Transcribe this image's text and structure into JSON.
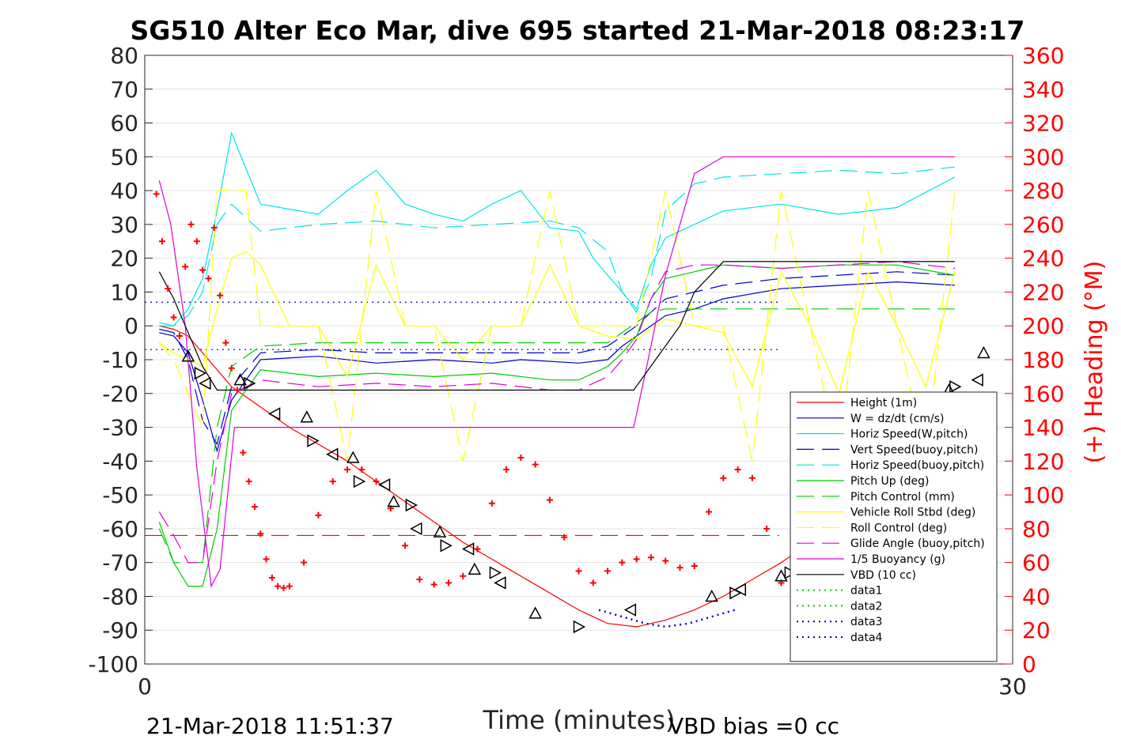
{
  "chart_data": {
    "type": "line",
    "title": "SG510 Alter Eco Mar, dive 695 started 21-Mar-2018 08:23:17",
    "xlabel": "Time (minutes)",
    "ylabel_right": "(+) Heading (°M)",
    "xlim": [
      0,
      30
    ],
    "ylim_left": [
      -100,
      80
    ],
    "ylim_right": [
      0,
      360
    ],
    "x_ticks": [
      "0",
      "30"
    ],
    "y_left_ticks": [
      "80",
      "70",
      "60",
      "50",
      "40",
      "30",
      "20",
      "10",
      "0",
      "-10",
      "-20",
      "-30",
      "-40",
      "-50",
      "-60",
      "-70",
      "-80",
      "-90",
      "-100"
    ],
    "y_right_ticks": [
      "360",
      "340",
      "320",
      "300",
      "280",
      "260",
      "240",
      "220",
      "200",
      "180",
      "160",
      "140",
      "120",
      "100",
      "80",
      "60",
      "40",
      "20",
      "0"
    ],
    "grid": true,
    "legend_position": "bottom-right",
    "footer_left": "21-Mar-2018 11:51:37",
    "footer_right": "VBD bias =0 cc",
    "reference_lines": [
      {
        "y": 7,
        "color": "#0000aa",
        "dash": "dotted"
      },
      {
        "y": -7,
        "color": "#0000aa",
        "dash": "dotted"
      },
      {
        "y": -62,
        "color": "#ff0000",
        "dash": "dashed"
      }
    ],
    "series": [
      {
        "name": "Height (1m)",
        "color": "#ff0000",
        "dash": "solid",
        "x": [
          0.5,
          1.0,
          1.5,
          2.0,
          3,
          4,
          5,
          6,
          7,
          8,
          9,
          10,
          11,
          12,
          13,
          14,
          15,
          16,
          17,
          18,
          19,
          20,
          21,
          22,
          23,
          24,
          25,
          26,
          27,
          28
        ],
        "y": [
          0,
          -1,
          -3,
          -8,
          -18,
          -24,
          -30,
          -35,
          -40,
          -46,
          -52,
          -58,
          -64,
          -69,
          -74,
          -79,
          -84,
          -88,
          -89,
          -87,
          -84,
          -80,
          -75,
          -70,
          -64,
          -57,
          -49,
          -41,
          -33,
          -25
        ]
      },
      {
        "name": "W = dz/dt (cm/s)",
        "color": "#0000cc",
        "dash": "solid",
        "x": [
          0.5,
          1.0,
          1.5,
          2.0,
          2.5,
          3,
          4,
          6,
          8,
          10,
          12,
          13,
          15,
          16,
          16.5,
          17,
          17.5,
          18,
          19,
          20,
          22,
          24,
          26,
          28
        ],
        "y": [
          -2,
          -3,
          -8,
          -22,
          -37,
          -22,
          -10,
          -9,
          -11,
          -10,
          -11,
          -10,
          -11,
          -10,
          -6,
          -3,
          0,
          3,
          5,
          8,
          11,
          12,
          13,
          12
        ]
      },
      {
        "name": "Horiz Speed(W,pitch)",
        "color": "#00e5e5",
        "dash": "solid",
        "x": [
          0.5,
          1.0,
          1.5,
          2.0,
          2.5,
          3,
          4,
          6,
          7,
          8,
          9,
          10,
          11,
          12,
          13,
          14,
          15,
          15.5,
          16,
          16.5,
          17,
          17.5,
          18,
          19,
          20,
          22,
          24,
          26,
          28
        ],
        "y": [
          1,
          0,
          5,
          14,
          34,
          57,
          36,
          33,
          40,
          46,
          36,
          33,
          31,
          36,
          40,
          29,
          28,
          20,
          15,
          10,
          5,
          18,
          26,
          30,
          34,
          36,
          33,
          35,
          44
        ]
      },
      {
        "name": "Vert Speed(buoy,pitch)",
        "color": "#0000cc",
        "dash": "dashed",
        "x": [
          0.5,
          1.0,
          1.5,
          2.0,
          2.5,
          3,
          4,
          6,
          8,
          10,
          12,
          14,
          15,
          16,
          16.5,
          17,
          17.5,
          18,
          20,
          22,
          24,
          26,
          28
        ],
        "y": [
          -1,
          -2,
          -10,
          -28,
          -35,
          -18,
          -8,
          -7,
          -8,
          -8,
          -8,
          -8,
          -8,
          -6,
          -3,
          0,
          4,
          8,
          12,
          14,
          15,
          16,
          15
        ]
      },
      {
        "name": "Horiz Speed(buoy,pitch)",
        "color": "#00e5e5",
        "dash": "dashed",
        "x": [
          0.5,
          1.0,
          1.5,
          2.0,
          2.5,
          3,
          4,
          6,
          8,
          10,
          12,
          14,
          15,
          16,
          16.5,
          17,
          17.5,
          18,
          19,
          20,
          22,
          24,
          26,
          28
        ],
        "y": [
          0,
          0,
          3,
          10,
          30,
          36,
          28,
          30,
          31,
          29,
          30,
          31,
          29,
          22,
          10,
          4,
          14,
          34,
          42,
          44,
          45,
          46,
          45,
          47
        ]
      },
      {
        "name": "Pitch Up (deg)",
        "color": "#00cc00",
        "dash": "solid",
        "x": [
          0.5,
          1.0,
          1.5,
          2.0,
          2.5,
          3,
          4,
          6,
          8,
          10,
          12,
          14,
          15,
          16,
          16.5,
          17,
          17.5,
          18,
          19,
          20,
          22,
          24,
          26,
          28
        ],
        "y": [
          -58,
          -70,
          -77,
          -77,
          -60,
          -25,
          -13,
          -15,
          -14,
          -15,
          -14,
          -16,
          -16,
          -12,
          -8,
          -3,
          8,
          14,
          16,
          18,
          17,
          18,
          18,
          15
        ]
      },
      {
        "name": "Pitch Control (mm)",
        "color": "#00cc00",
        "dash": "dashed",
        "x": [
          0.5,
          1.0,
          1.5,
          2.0,
          2.5,
          3,
          4,
          6,
          8,
          10,
          12,
          14,
          15,
          16,
          16.5,
          17,
          17.5,
          18,
          19,
          20,
          22,
          24,
          26,
          28
        ],
        "y": [
          -60,
          -70,
          -70,
          -70,
          -30,
          -12,
          -6,
          -5,
          -5,
          -5,
          -5,
          -5,
          -5,
          -5,
          -2,
          1,
          4,
          5,
          5,
          5,
          5,
          5,
          5,
          5
        ]
      },
      {
        "name": "Vehicle Roll Stbd (deg)",
        "color": "#ffff00",
        "dash": "solid",
        "x": [
          0.5,
          1.0,
          1.5,
          2.0,
          2.5,
          3,
          3.5,
          4,
          5,
          6,
          7,
          8,
          9,
          10,
          11,
          12,
          13,
          14,
          15,
          16,
          17,
          18,
          19,
          20,
          21,
          22,
          23,
          24,
          25,
          26,
          27,
          28
        ],
        "y": [
          -5,
          -8,
          -10,
          -12,
          5,
          20,
          22,
          18,
          0,
          0,
          -15,
          18,
          0,
          0,
          -10,
          0,
          0,
          18,
          0,
          -3,
          -4,
          2,
          0,
          -2,
          -18,
          16,
          0,
          -20,
          16,
          0,
          -18,
          16
        ]
      },
      {
        "name": "Roll Control (deg)",
        "color": "#ffff00",
        "dash": "dashed",
        "x": [
          0.5,
          1.0,
          1.5,
          2.0,
          2.5,
          3,
          3.5,
          4,
          5,
          6,
          7,
          8,
          9,
          10,
          11,
          12,
          13,
          14,
          15,
          16,
          17,
          18,
          19,
          20,
          21,
          22,
          23,
          24,
          25,
          26,
          27,
          28
        ],
        "y": [
          -5,
          -10,
          -20,
          -30,
          40,
          40,
          40,
          0,
          0,
          0,
          -40,
          40,
          0,
          0,
          -40,
          0,
          0,
          40,
          0,
          0,
          0,
          40,
          0,
          0,
          -40,
          40,
          0,
          -40,
          40,
          0,
          -40,
          40
        ]
      },
      {
        "name": "Glide Angle (buoy,pitch)",
        "color": "#dd00dd",
        "dash": "dashed",
        "x": [
          0.5,
          1.0,
          1.5,
          2.0,
          2.5,
          3,
          4,
          6,
          8,
          10,
          12,
          14,
          15,
          16,
          16.5,
          17,
          17.5,
          18,
          19,
          20,
          22,
          24,
          26,
          28
        ],
        "y": [
          -55,
          -62,
          -70,
          -70,
          -40,
          -20,
          -16,
          -18,
          -17,
          -18,
          -17,
          -19,
          -19,
          -15,
          -10,
          -4,
          8,
          16,
          18,
          18,
          17,
          18,
          19,
          17
        ]
      },
      {
        "name": "1/5 Buoyancy (g)",
        "color": "#dd00dd",
        "dash": "solid",
        "x": [
          0.5,
          0.9,
          1.4,
          1.8,
          2.3,
          2.6,
          3.1,
          8,
          12,
          16.9,
          17.4,
          18,
          19,
          20,
          22,
          24,
          26,
          28
        ],
        "y": [
          43,
          30,
          0,
          -42,
          -77,
          -72,
          -30,
          -30,
          -30,
          -30,
          -10,
          15,
          45,
          50,
          50,
          50,
          50,
          50
        ]
      },
      {
        "name": "VBD (10 cc)",
        "color": "#000000",
        "dash": "solid",
        "x": [
          0.5,
          1.0,
          1.5,
          2.0,
          2.5,
          3,
          6,
          10,
          14,
          16.9,
          18.5,
          19,
          20,
          22,
          24,
          26,
          28
        ],
        "y": [
          16,
          8,
          -2,
          -12,
          -19,
          -19,
          -19,
          -19,
          -19,
          -19,
          0,
          10,
          19,
          19,
          19,
          19,
          19
        ]
      },
      {
        "name": "data1",
        "color": "#00cc00",
        "dash": "dotted",
        "x": [],
        "y": []
      },
      {
        "name": "data2",
        "color": "#00cc00",
        "dash": "dotted",
        "x": [],
        "y": []
      },
      {
        "name": "data3",
        "color": "#0000cc",
        "dash": "dotted",
        "x": [
          15.7,
          16.5,
          17.3,
          18,
          18.8,
          19.6,
          20.4
        ],
        "y": [
          -84,
          -86,
          -88,
          -89,
          -88,
          -86,
          -84
        ]
      },
      {
        "name": "data4",
        "color": "#0000cc",
        "dash": "dotted",
        "x": [],
        "y": []
      }
    ],
    "heading": {
      "axis": "right",
      "color": "#ff0000",
      "marker": "+",
      "x": [
        0.4,
        0.6,
        0.8,
        1.0,
        1.2,
        1.4,
        1.6,
        1.8,
        2.0,
        2.2,
        2.4,
        2.6,
        2.8,
        3.0,
        3.2,
        3.4,
        3.6,
        3.8,
        4.0,
        4.2,
        4.4,
        4.6,
        4.8,
        5.0,
        5.5,
        6.0,
        6.5,
        7.0,
        7.5,
        8.0,
        8.5,
        9.0,
        9.5,
        10.0,
        10.5,
        11.0,
        11.5,
        12.0,
        12.5,
        13.0,
        13.5,
        14.0,
        14.5,
        15.0,
        15.5,
        16.0,
        16.5,
        17.0,
        17.5,
        18.0,
        18.5,
        19.0,
        19.5,
        20.0,
        20.5,
        21.0,
        21.5,
        22.0,
        22.5,
        23.0,
        23.5,
        24.0,
        24.5,
        25.0,
        25.5,
        26.0,
        26.5,
        27.0,
        27.5,
        28.0
      ],
      "y": [
        278,
        250,
        222,
        205,
        194,
        235,
        260,
        250,
        233,
        228,
        258,
        218,
        190,
        175,
        162,
        125,
        108,
        93,
        77,
        62,
        51,
        46,
        45,
        46,
        60,
        88,
        108,
        115,
        115,
        108,
        92,
        70,
        50,
        47,
        48,
        52,
        68,
        95,
        115,
        122,
        118,
        97,
        75,
        55,
        48,
        55,
        60,
        62,
        63,
        61,
        57,
        58,
        90,
        110,
        115,
        110,
        80,
        48,
        28,
        20,
        50,
        80,
        100,
        110,
        105,
        80,
        55,
        40,
        25,
        15
      ]
    },
    "markers": {
      "type": "triangles",
      "color": "#000000",
      "x": [
        1.5,
        1.9,
        2.1,
        3.3,
        3.6,
        4.5,
        5.6,
        5.8,
        6.5,
        7.2,
        7.4,
        8.3,
        8.6,
        9.2,
        9.4,
        10.2,
        10.4,
        11.2,
        11.4,
        12.1,
        12.3,
        13.5,
        15.0,
        16.8,
        19.6,
        20.4,
        20.6,
        22.0,
        22.3,
        22.8,
        24.5,
        24.8,
        25.8,
        26.2,
        26.4,
        27.6,
        27.8,
        28.0,
        28.8,
        29.0
      ],
      "y": [
        -9,
        -14,
        -17,
        -16,
        -17,
        -26,
        -27,
        -34,
        -38,
        -39,
        -46,
        -47,
        -52,
        -53,
        -60,
        -61,
        -65,
        -66,
        -72,
        -73,
        -76,
        -85,
        -89,
        -84,
        -80,
        -79,
        -78,
        -74,
        -73,
        -71,
        -63,
        -62,
        -54,
        -46,
        -43,
        -42,
        -19,
        -18,
        -16,
        -8
      ]
    }
  }
}
